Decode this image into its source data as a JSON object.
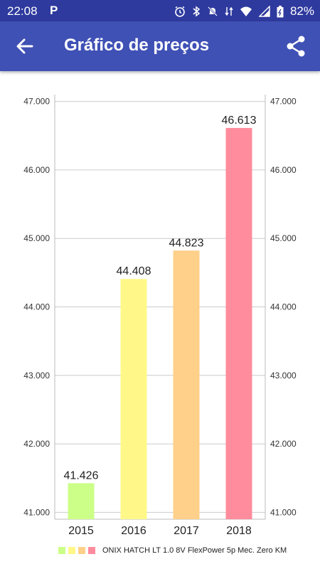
{
  "status_bar": {
    "time": "22:08",
    "app_icon": "P",
    "battery_pct": "82%",
    "icons": [
      "alarm-icon",
      "bluetooth-icon",
      "mute-icon",
      "data-icon",
      "wifi-icon",
      "signal-icon",
      "battery-icon"
    ]
  },
  "app_bar": {
    "title": "Gráfico de preços",
    "back_icon": "arrow-left-icon",
    "share_icon": "share-icon"
  },
  "chart_data": {
    "type": "bar",
    "categories": [
      "2015",
      "2016",
      "2017",
      "2018"
    ],
    "values": [
      41426,
      44408,
      44823,
      46613
    ],
    "value_labels": [
      "41.426",
      "44.408",
      "44.823",
      "46.613"
    ],
    "colors": [
      "#ccff88",
      "#fff888",
      "#ffd08a",
      "#ff8c9c"
    ],
    "ylim": [
      40900,
      47100
    ],
    "yticks": [
      41000,
      42000,
      43000,
      44000,
      45000,
      46000,
      47000
    ],
    "ytick_labels": [
      "41.000",
      "42.000",
      "43.000",
      "44.000",
      "45.000",
      "46.000",
      "47.000"
    ],
    "grid": true,
    "legend": {
      "placement": "bottom",
      "label": "ONIX HATCH LT 1.0 8V FlexPower 5p Mec. Zero KM"
    }
  }
}
